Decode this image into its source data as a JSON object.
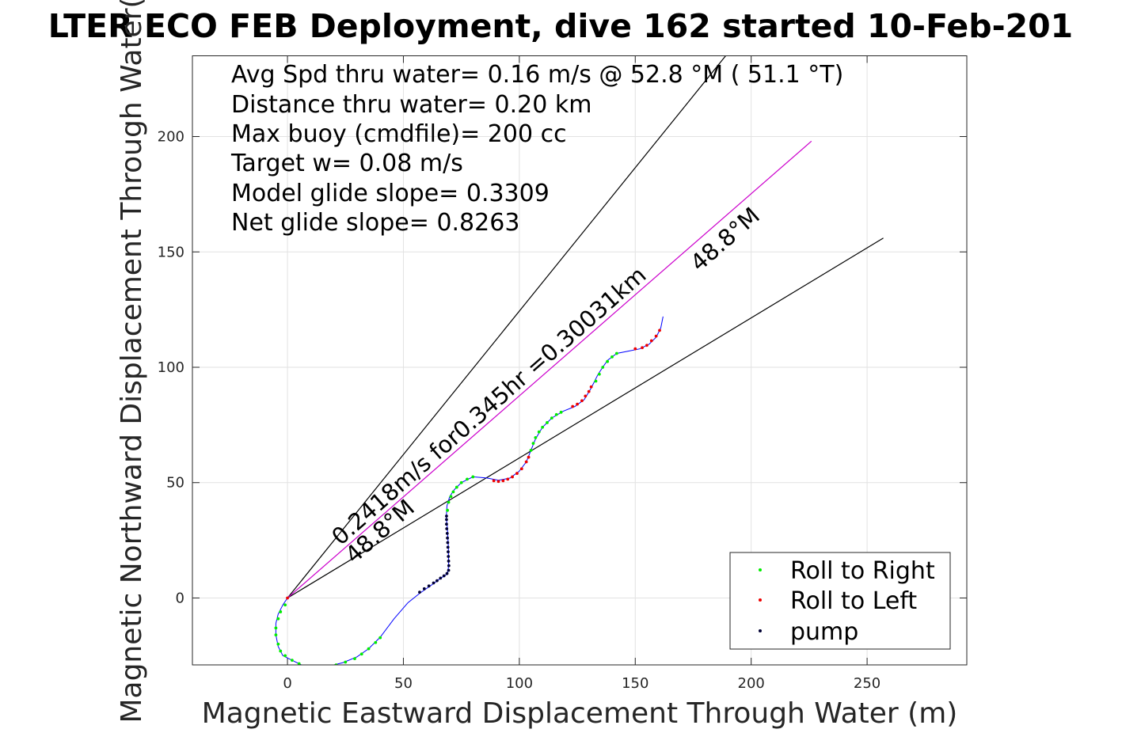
{
  "colors": {
    "roll_right": "#00ee00",
    "roll_left": "#ee0000",
    "pump": "#000033",
    "track": "#0000ff",
    "heading": "#cc00cc",
    "bounds": "#000000",
    "grid": "#e2e2e2",
    "axes": "#262626"
  },
  "chart_data": {
    "type": "scatter",
    "title": "LTER ECO FEB Deployment, dive 162 started 10-Feb-201",
    "xlabel": "Magnetic Eastward Displacement Through Water (m)",
    "ylabel": "Magnetic Northward Displacement Through Water(",
    "xlim": [
      -41,
      293
    ],
    "ylim": [
      -29,
      235
    ],
    "xticks": [
      0,
      50,
      100,
      150,
      200,
      250
    ],
    "yticks": [
      0,
      50,
      100,
      150,
      200
    ],
    "grid": true,
    "legend_position": "bottom-right",
    "stats": [
      "Avg Spd thru water=  0.16 m/s @  52.8 °M ( 51.1 °T)",
      "Distance thru water=  0.20 km",
      "Max buoy (cmdfile)= 200 cc",
      "Target w= 0.08 m/s",
      "Model glide slope= 0.3309",
      "Net glide slope= 0.8263"
    ],
    "annotations": {
      "line_label": "0.2418m/s for0.345hr =0.30031km",
      "heading_lower": "48.8°M",
      "heading_upper": "48.8°M"
    },
    "reference_lines": {
      "heading": [
        [
          0,
          0
        ],
        [
          226,
          198
        ]
      ],
      "bound_upper": [
        [
          0,
          0
        ],
        [
          189,
          235
        ]
      ],
      "bound_lower": [
        [
          0,
          0
        ],
        [
          257,
          156
        ]
      ]
    },
    "track": [
      [
        0,
        0
      ],
      [
        -2,
        -3
      ],
      [
        -4,
        -7
      ],
      [
        -5,
        -11
      ],
      [
        -5,
        -16
      ],
      [
        -4,
        -21
      ],
      [
        -2,
        -25
      ],
      [
        2,
        -27
      ],
      [
        6,
        -29
      ],
      [
        12,
        -30
      ],
      [
        18,
        -29.5
      ],
      [
        24,
        -28
      ],
      [
        30,
        -25.5
      ],
      [
        35,
        -22
      ],
      [
        40,
        -17
      ],
      [
        46,
        -9
      ],
      [
        52,
        -2
      ],
      [
        57,
        2
      ],
      [
        62,
        5.5
      ],
      [
        66,
        8.5
      ],
      [
        69,
        10.5
      ],
      [
        69.5,
        14
      ],
      [
        69.4,
        22
      ],
      [
        69,
        30
      ],
      [
        68.5,
        35
      ],
      [
        68.8,
        40
      ],
      [
        70,
        44
      ],
      [
        72,
        47
      ],
      [
        75,
        50
      ],
      [
        80,
        52.5
      ],
      [
        86,
        52
      ],
      [
        91,
        51
      ],
      [
        96,
        52
      ],
      [
        100,
        55
      ],
      [
        103,
        59
      ],
      [
        105,
        64
      ],
      [
        107,
        69
      ],
      [
        110,
        74
      ],
      [
        114,
        78
      ],
      [
        119,
        81
      ],
      [
        124,
        83
      ],
      [
        128,
        86
      ],
      [
        131,
        91
      ],
      [
        134,
        97
      ],
      [
        138,
        103
      ],
      [
        142,
        106
      ],
      [
        147,
        107
      ],
      [
        152,
        108
      ],
      [
        156,
        110
      ],
      [
        159,
        113
      ],
      [
        161,
        117
      ],
      [
        162,
        122
      ]
    ],
    "series": [
      {
        "name": "Roll to Right",
        "points": [
          [
            -1,
            -3
          ],
          [
            -3,
            -6
          ],
          [
            -4,
            -9
          ],
          [
            -5,
            -13
          ],
          [
            -5,
            -16
          ],
          [
            -4,
            -20
          ],
          [
            -3,
            -23
          ],
          [
            -1,
            -25
          ],
          [
            2,
            -27
          ],
          [
            5,
            -28.5
          ],
          [
            9,
            -29.5
          ],
          [
            13,
            -30
          ],
          [
            17,
            -29.7
          ],
          [
            21,
            -29
          ],
          [
            25,
            -27.8
          ],
          [
            29,
            -26.3
          ],
          [
            32,
            -24.3
          ],
          [
            35,
            -22
          ],
          [
            38,
            -19.3
          ],
          [
            40,
            -17.2
          ],
          [
            69,
            38
          ],
          [
            69.5,
            41.5
          ],
          [
            70.5,
            44
          ],
          [
            71.5,
            46
          ],
          [
            73,
            48
          ],
          [
            75,
            50
          ],
          [
            77.5,
            51.5
          ],
          [
            80,
            52.5
          ],
          [
            105,
            64
          ],
          [
            106,
            67
          ],
          [
            107,
            69.5
          ],
          [
            108.5,
            72
          ],
          [
            110,
            74
          ],
          [
            112,
            76
          ],
          [
            114,
            78
          ],
          [
            116,
            79.5
          ],
          [
            118,
            80.5
          ],
          [
            133,
            94
          ],
          [
            134.5,
            97
          ],
          [
            136,
            100
          ],
          [
            138,
            102.5
          ],
          [
            140,
            104.5
          ],
          [
            142,
            106
          ]
        ]
      },
      {
        "name": "Roll to Left",
        "points": [
          [
            0,
            0
          ],
          [
            89,
            50.8
          ],
          [
            91,
            50.5
          ],
          [
            93,
            50.8
          ],
          [
            95,
            51.5
          ],
          [
            97,
            52.5
          ],
          [
            99,
            54
          ],
          [
            101,
            56
          ],
          [
            103,
            59
          ],
          [
            104,
            61
          ],
          [
            123,
            83
          ],
          [
            125,
            84
          ],
          [
            127,
            85.5
          ],
          [
            128.5,
            87.5
          ],
          [
            130,
            89.5
          ],
          [
            131,
            91.5
          ],
          [
            150,
            108
          ],
          [
            153,
            108.5
          ],
          [
            155,
            109.5
          ],
          [
            157,
            111.5
          ],
          [
            159,
            113.5
          ],
          [
            160.5,
            116
          ]
        ]
      },
      {
        "name": "pump",
        "points": [
          [
            57,
            2.5
          ],
          [
            59,
            4
          ],
          [
            61,
            5.2
          ],
          [
            63,
            6.5
          ],
          [
            64.5,
            7.5
          ],
          [
            66,
            8.6
          ],
          [
            67.5,
            9.6
          ],
          [
            68.8,
            10.6
          ],
          [
            69.5,
            12
          ],
          [
            69.6,
            14
          ],
          [
            69.5,
            16
          ],
          [
            69.4,
            18
          ],
          [
            69.3,
            20
          ],
          [
            69.2,
            22
          ],
          [
            69.1,
            24
          ],
          [
            69,
            26
          ],
          [
            68.9,
            28
          ],
          [
            68.7,
            30
          ],
          [
            68.6,
            32
          ],
          [
            68.6,
            34
          ],
          [
            68.6,
            35.5
          ]
        ]
      }
    ]
  }
}
